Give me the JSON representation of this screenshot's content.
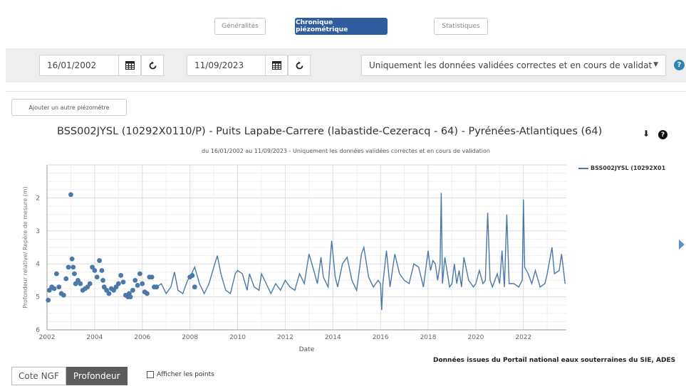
{
  "tabs": [
    {
      "label": "Généralités",
      "active": false
    },
    {
      "label": "Chronique piézométrique",
      "active": true
    },
    {
      "label": "Statistiques",
      "active": false
    }
  ],
  "filters": {
    "start_date": "16/01/2002",
    "end_date": "11/09/2023",
    "validity_select": "Uniquement les données validées correctes et en cours de validat",
    "help": "?"
  },
  "icons": {
    "calendar": "calendar-icon",
    "refresh": "refresh-icon",
    "download": "download-icon",
    "help": "question-icon"
  },
  "add_piezometer_label": "Ajouter un autre piézomètre",
  "chart_data": {
    "type": "line",
    "title": "BSS002JYSL (10292X0110/P) - Puits Lapabe-Carrere (labastide-Cezeracq - 64) - Pyrénées-Atlantiques (64)",
    "subtitle": "du 16/01/2002 au 11/09/2023 - Uniquement les données validées correctes et en cours de validation",
    "xlabel": "Date",
    "ylabel": "Profondeur relative/ Repère de mesure (m)",
    "x_range": [
      2002,
      2023.8
    ],
    "ylim": [
      1,
      6
    ],
    "y_inverted": true,
    "x_ticks": [
      "2002",
      "2004",
      "2006",
      "2008",
      "2010",
      "2012",
      "2014",
      "2016",
      "2018",
      "2020",
      "2022"
    ],
    "y_ticks": [
      "2",
      "3",
      "4",
      "5",
      "6"
    ],
    "grid": true,
    "legend_position": "right",
    "color": "#4a78a8",
    "series": [
      {
        "name": "BSS002JYSL (10292X01",
        "points_x": [
          2002.05,
          2002.1,
          2002.2,
          2002.3,
          2002.4,
          2002.5,
          2002.6,
          2002.7,
          2002.8,
          2002.9,
          2003.0,
          2003.05,
          2003.1,
          2003.15,
          2003.2,
          2003.3,
          2003.4,
          2003.5,
          2003.6,
          2003.7,
          2003.8,
          2003.9,
          2004.0,
          2004.1,
          2004.2,
          2004.3,
          2004.35,
          2004.4,
          2004.5,
          2004.6,
          2004.7,
          2004.8,
          2004.9,
          2005.0,
          2005.1,
          2005.2,
          2005.3,
          2005.4,
          2005.45,
          2005.5,
          2005.6,
          2005.7,
          2005.8,
          2005.9,
          2006.0,
          2006.1,
          2006.2,
          2006.3,
          2006.4,
          2006.5,
          2006.6,
          2008.0,
          2008.1,
          2008.2
        ],
        "points_y": [
          5.1,
          4.8,
          4.7,
          4.75,
          4.3,
          4.7,
          4.9,
          4.95,
          4.45,
          4.1,
          1.9,
          3.85,
          4.1,
          4.3,
          4.6,
          4.5,
          4.6,
          4.8,
          4.75,
          4.7,
          4.6,
          4.1,
          4.2,
          4.4,
          3.9,
          4.2,
          4.5,
          4.7,
          4.8,
          4.9,
          4.75,
          4.8,
          4.7,
          4.6,
          4.35,
          4.55,
          4.95,
          5.0,
          4.9,
          5.0,
          4.8,
          4.5,
          4.65,
          4.3,
          4.6,
          4.85,
          4.9,
          4.4,
          4.4,
          4.7,
          4.7,
          4.4,
          4.35,
          4.7
        ],
        "line_x": [
          2006.6,
          2006.8,
          2007.0,
          2007.2,
          2007.35,
          2007.5,
          2007.7,
          2007.9,
          2008.0,
          2008.2,
          2008.4,
          2008.6,
          2008.8,
          2009.0,
          2009.15,
          2009.3,
          2009.5,
          2009.7,
          2009.9,
          2010.0,
          2010.2,
          2010.4,
          2010.5,
          2010.7,
          2010.9,
          2011.0,
          2011.2,
          2011.4,
          2011.6,
          2011.8,
          2012.0,
          2012.2,
          2012.4,
          2012.6,
          2012.8,
          2013.0,
          2013.2,
          2013.35,
          2013.5,
          2013.6,
          2013.8,
          2013.95,
          2014.1,
          2014.2,
          2014.4,
          2014.6,
          2014.8,
          2015.0,
          2015.2,
          2015.3,
          2015.5,
          2015.7,
          2015.9,
          2016.0,
          2016.05,
          2016.1,
          2016.25,
          2016.4,
          2016.6,
          2016.8,
          2017.0,
          2017.2,
          2017.4,
          2017.6,
          2017.8,
          2018.0,
          2018.1,
          2018.2,
          2018.3,
          2018.4,
          2018.5,
          2018.55,
          2018.6,
          2018.7,
          2018.9,
          2019.0,
          2019.1,
          2019.2,
          2019.3,
          2019.4,
          2019.5,
          2019.7,
          2019.9,
          2020.0,
          2020.15,
          2020.3,
          2020.4,
          2020.5,
          2020.6,
          2020.7,
          2020.9,
          2021.0,
          2021.1,
          2021.2,
          2021.3,
          2021.4,
          2021.6,
          2021.8,
          2021.95,
          2022.0,
          2022.05,
          2022.2,
          2022.35,
          2022.5,
          2022.7,
          2022.9,
          2023.0,
          2023.2,
          2023.3,
          2023.5,
          2023.6,
          2023.75
        ],
        "line_y": [
          4.7,
          4.6,
          4.9,
          4.7,
          4.25,
          4.8,
          4.9,
          4.5,
          4.4,
          4.1,
          4.6,
          4.9,
          4.6,
          4.1,
          3.75,
          4.3,
          4.8,
          4.9,
          4.3,
          4.2,
          4.3,
          4.8,
          4.3,
          4.7,
          4.8,
          4.3,
          4.6,
          4.9,
          4.6,
          4.8,
          4.5,
          4.7,
          4.8,
          4.3,
          4.6,
          3.7,
          4.2,
          4.6,
          3.8,
          4.4,
          4.7,
          3.3,
          4.4,
          4.7,
          4.0,
          3.8,
          4.5,
          4.8,
          3.7,
          3.5,
          4.4,
          4.7,
          4.5,
          4.6,
          5.4,
          4.6,
          3.6,
          4.7,
          3.7,
          4.3,
          4.5,
          4.6,
          4.0,
          4.1,
          4.7,
          3.6,
          4.2,
          3.9,
          4.0,
          4.5,
          4.0,
          1.85,
          4.6,
          3.8,
          4.7,
          4.6,
          4.0,
          4.6,
          4.2,
          4.7,
          3.8,
          4.5,
          4.7,
          4.6,
          4.2,
          4.6,
          4.5,
          2.45,
          4.5,
          4.7,
          4.3,
          4.6,
          3.6,
          4.7,
          2.5,
          4.6,
          4.6,
          4.7,
          4.5,
          2.05,
          4.1,
          4.3,
          4.6,
          4.2,
          4.7,
          4.6,
          4.3,
          3.5,
          4.3,
          4.2,
          3.7,
          4.6
        ]
      }
    ]
  },
  "credits": "Données issues du Portail national eaux souterraines du SIE, ADES",
  "toggle": {
    "cote": "Cote NGF",
    "profondeur": "Profondeur"
  },
  "show_points_label": "Afficher les points"
}
